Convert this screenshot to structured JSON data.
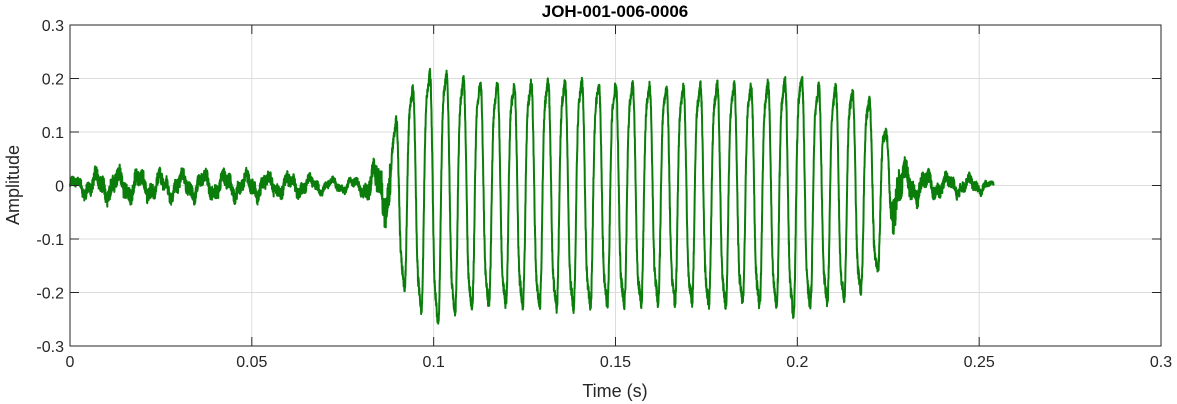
{
  "chart_data": {
    "type": "line",
    "title": "JOH-001-006-0006",
    "xlabel": "Time (s)",
    "ylabel": "Amplitude",
    "xlim": [
      0,
      0.3
    ],
    "ylim": [
      -0.3,
      0.3
    ],
    "xticks": [
      0,
      0.05,
      0.1,
      0.15,
      0.2,
      0.25,
      0.3
    ],
    "xtick_labels": [
      "0",
      "0.05",
      "0.1",
      "0.15",
      "0.2",
      "0.25",
      "0.3"
    ],
    "yticks": [
      -0.3,
      -0.2,
      -0.1,
      0,
      0.1,
      0.2,
      0.3
    ],
    "ytick_labels": [
      "-0.3",
      "-0.2",
      "-0.1",
      "0",
      "0.1",
      "0.2",
      "0.3"
    ],
    "grid": true,
    "line_color": "#0a7d0a",
    "series": [
      {
        "x": [
          0,
          0.005,
          0.01,
          0.015,
          0.02,
          0.025,
          0.03,
          0.035,
          0.04,
          0.045,
          0.05,
          0.055,
          0.06,
          0.065,
          0.07,
          0.075,
          0.08,
          0.085,
          0.088,
          0.09,
          0.092,
          0.095,
          0.1,
          0.105,
          0.11,
          0.115,
          0.12,
          0.125,
          0.13,
          0.135,
          0.14,
          0.145,
          0.15,
          0.155,
          0.16,
          0.165,
          0.17,
          0.175,
          0.18,
          0.185,
          0.19,
          0.195,
          0.2,
          0.205,
          0.21,
          0.215,
          0.22,
          0.223,
          0.226,
          0.23,
          0.235,
          0.24,
          0.245,
          0.25,
          0.254
        ],
        "y": [
          0.015,
          0.028,
          0.035,
          0.035,
          0.032,
          0.03,
          0.03,
          0.03,
          0.03,
          0.03,
          0.03,
          0.027,
          0.027,
          0.022,
          0.016,
          0.014,
          0.02,
          0.06,
          0.085,
          0.15,
          0.19,
          0.21,
          0.25,
          0.23,
          0.22,
          0.215,
          0.215,
          0.215,
          0.22,
          0.22,
          0.22,
          0.215,
          0.215,
          0.215,
          0.21,
          0.21,
          0.21,
          0.215,
          0.215,
          0.21,
          0.215,
          0.22,
          0.235,
          0.21,
          0.21,
          0.2,
          0.18,
          0.14,
          0.08,
          0.045,
          0.03,
          0.025,
          0.022,
          0.018,
          0.006
        ]
      }
    ]
  }
}
